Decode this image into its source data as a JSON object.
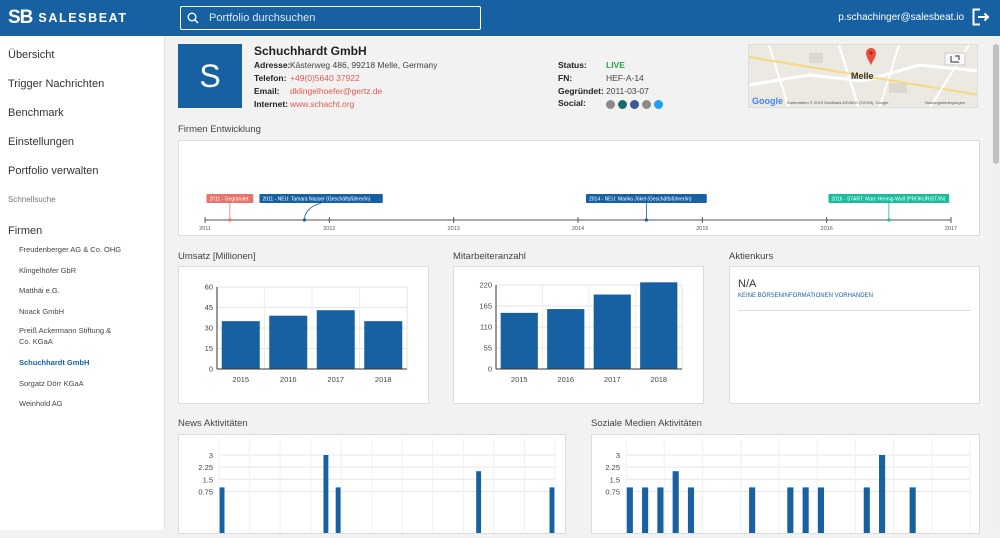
{
  "app": {
    "logo_mark": "SB",
    "logo_text": "SALESBEAT",
    "search_placeholder": "Portfolio durchsuchen",
    "user_email": "p.schachinger@salesbeat.io"
  },
  "sidebar": {
    "items": [
      {
        "label": "Übersicht"
      },
      {
        "label": "Trigger Nachrichten"
      },
      {
        "label": "Benchmark"
      },
      {
        "label": "Einstellungen"
      },
      {
        "label": "Portfolio verwalten"
      }
    ],
    "quick_search_label": "Schnellsuche",
    "firms_heading": "Firmen",
    "firms": [
      {
        "label": "Freudenberger AG & Co. OHG"
      },
      {
        "label": "Klingelhöfer GbR"
      },
      {
        "label": "Matthäi e.G."
      },
      {
        "label": "Noack GmbH"
      },
      {
        "label": "Preiß Ackermann Stiftung & Co. KGaA"
      },
      {
        "label": "Schuchhardt GmbH"
      },
      {
        "label": "Sorgatz Dörr KGaA"
      },
      {
        "label": "Weinhold AG"
      }
    ],
    "active_firm": "Schuchhardt GmbH"
  },
  "company": {
    "avatar_letter": "S",
    "name": "Schuchhardt GmbH",
    "address_label": "Adresse:",
    "address": "Kästerweg 486, 99218 Melle, Germany",
    "phone_label": "Telefon:",
    "phone": "+49(0)5640 37922",
    "email_label": "Email:",
    "email": "dklingelhoefer@gertz.de",
    "web_label": "Internet:",
    "web": "www.schacht.org",
    "status_label": "Status:",
    "status": "LIVE",
    "fn_label": "FN:",
    "fn": "HEF-A-14",
    "founded_label": "Gegründet:",
    "founded": "2011-03-07",
    "social_label": "Social:",
    "social_icons": [
      "linkedin-icon",
      "xing-icon",
      "facebook-icon",
      "youtube-icon",
      "twitter-icon"
    ]
  },
  "map": {
    "city": "Melle",
    "google": "Google",
    "attribution": "Kartendaten © 2019 GeoBasis-DE/BKG (©2009), Google",
    "terms": "Nutzungsbedingungen"
  },
  "timeline": {
    "title": "Firmen Entwicklung",
    "years": [
      "2011",
      "2012",
      "2013",
      "2014",
      "2015",
      "2016",
      "2017"
    ],
    "events": [
      {
        "label": "2011 - Gegründet",
        "color": "#e8736b",
        "year": 2011.2
      },
      {
        "label": "2011 - NEU: Tamara Nasser (Geschäftsführer/in)",
        "color": "#1761a3",
        "year": 2011.8
      },
      {
        "label": "2014 - NEU: Marika Jökel (Geschäftsführer/in)",
        "color": "#1761a3",
        "year": 2014.55
      },
      {
        "label": "2016 - START: Marc Hennig-Wulf (PROKURIST/IN)",
        "color": "#1abc9c",
        "year": 2016.5
      }
    ]
  },
  "sections": {
    "revenue_title": "Umsatz [Millionen]",
    "employees_title": "Mitarbeiteranzahl",
    "stock_title": "Aktienkurs",
    "stock_value": "N/A",
    "stock_note": "KEINE BÖRSENINFORMATIONEN VORHANDEN",
    "news_title": "News Aktivitäten",
    "social_title": "Soziale Medien Aktivitäten"
  },
  "chart_data": [
    {
      "type": "bar",
      "categories": [
        "2015",
        "2016",
        "2017",
        "2018"
      ],
      "values": [
        35,
        39,
        43,
        35
      ],
      "ylim": [
        0,
        60
      ],
      "yticks": [
        "0",
        "15",
        "30",
        "45",
        "60"
      ],
      "color": "#1761a3"
    },
    {
      "type": "bar",
      "categories": [
        "2015",
        "2016",
        "2017",
        "2018"
      ],
      "values": [
        147,
        157,
        195,
        227
      ],
      "ylim": [
        0,
        220
      ],
      "yticks": [
        "0",
        "55",
        "110",
        "165",
        "220"
      ],
      "color": "#1761a3"
    },
    {
      "type": "bar",
      "values": [
        1,
        0,
        0,
        0,
        0,
        0,
        0,
        0,
        0,
        0,
        0,
        0,
        0,
        0,
        0,
        0,
        0,
        3,
        0,
        1,
        0,
        0,
        0,
        0,
        0,
        0,
        0,
        0,
        0,
        0,
        0,
        0,
        0,
        0,
        0,
        0,
        0,
        0,
        0,
        0,
        0,
        0,
        2,
        0,
        0,
        0,
        0,
        0,
        0,
        0,
        0,
        0,
        0,
        0,
        1
      ],
      "yticks": [
        "0.75",
        "1.5",
        "2.25",
        "3"
      ],
      "ylim_visible": [
        0.7,
        3.1
      ],
      "color": "#1761a3"
    },
    {
      "type": "bar",
      "values": [
        1,
        0,
        1,
        0,
        1,
        0,
        2,
        0,
        1,
        0,
        0,
        0,
        0,
        0,
        0,
        0,
        1,
        0,
        0,
        0,
        0,
        1,
        0,
        1,
        0,
        1,
        0,
        0,
        0,
        0,
        0,
        1,
        0,
        3,
        0,
        0,
        0,
        1,
        0,
        0,
        0,
        0,
        0,
        0,
        0
      ],
      "yticks": [
        "0.75",
        "1.5",
        "2.25",
        "3"
      ],
      "ylim_visible": [
        0.7,
        3.1
      ],
      "color": "#1761a3"
    }
  ]
}
